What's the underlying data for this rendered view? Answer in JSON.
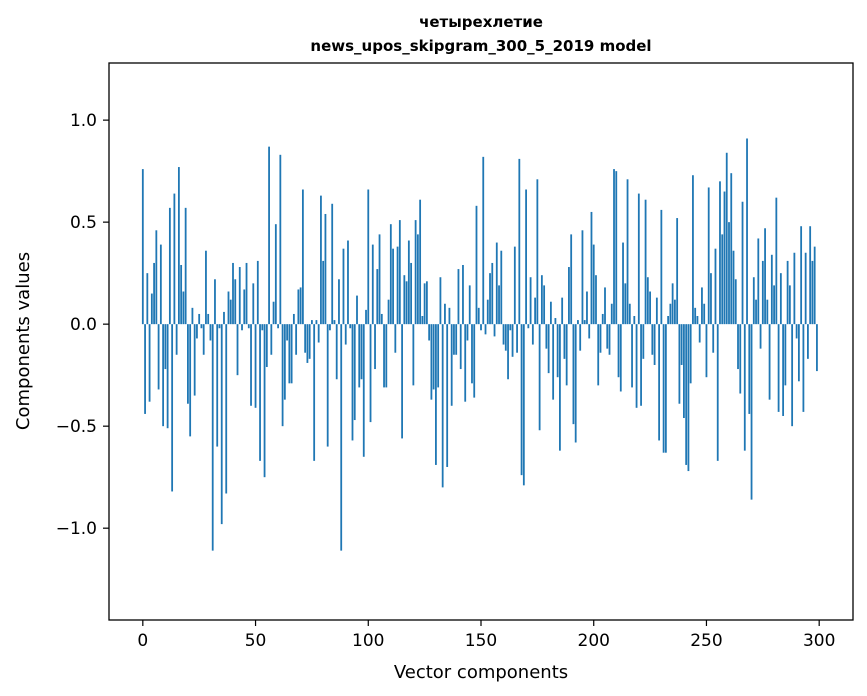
{
  "chart_data": {
    "type": "bar",
    "title_line1": "четырехлетие",
    "title_line2": "news_upos_skipgram_300_5_2019 model",
    "xlabel": "Vector components",
    "ylabel": "Components values",
    "xlim": [
      -15,
      315
    ],
    "ylim": [
      -1.45,
      1.28
    ],
    "xticks": [
      0,
      50,
      100,
      150,
      200,
      250,
      300
    ],
    "xtick_labels": [
      "0",
      "50",
      "100",
      "150",
      "200",
      "250",
      "300"
    ],
    "yticks": [
      -1.0,
      -0.5,
      0.0,
      0.5,
      1.0
    ],
    "ytick_labels": [
      "−1.0",
      "−0.5",
      "0.0",
      "0.5",
      "1.0"
    ],
    "bar_color": "#1f77b4",
    "values": [
      0.76,
      -0.44,
      0.25,
      -0.38,
      0.15,
      0.3,
      0.46,
      -0.32,
      0.39,
      -0.5,
      -0.22,
      -0.51,
      0.57,
      -0.82,
      0.64,
      -0.15,
      0.77,
      0.29,
      0.16,
      0.57,
      -0.39,
      -0.55,
      0.08,
      -0.35,
      -0.07,
      0.05,
      -0.02,
      -0.15,
      0.36,
      0.05,
      -0.08,
      -1.11,
      0.22,
      -0.6,
      -0.02,
      -0.98,
      0.06,
      -0.83,
      0.16,
      0.12,
      0.3,
      0.22,
      -0.25,
      0.28,
      -0.03,
      0.17,
      0.3,
      -0.02,
      -0.4,
      0.2,
      -0.41,
      0.31,
      -0.67,
      -0.03,
      -0.75,
      -0.21,
      0.87,
      -0.15,
      0.11,
      0.49,
      -0.02,
      0.83,
      -0.5,
      -0.37,
      -0.08,
      -0.29,
      -0.29,
      0.05,
      -0.15,
      0.17,
      0.18,
      0.66,
      -0.14,
      -0.19,
      -0.17,
      0.02,
      -0.67,
      0.02,
      -0.09,
      0.63,
      0.31,
      0.54,
      -0.6,
      -0.03,
      0.59,
      0.02,
      -0.27,
      0.22,
      -1.11,
      0.37,
      -0.1,
      0.41,
      -0.02,
      -0.57,
      -0.47,
      0.14,
      -0.31,
      -0.27,
      -0.65,
      0.07,
      0.66,
      -0.48,
      0.39,
      -0.22,
      0.27,
      0.44,
      0.05,
      -0.31,
      -0.31,
      0.12,
      0.49,
      0.37,
      -0.14,
      0.38,
      0.51,
      -0.56,
      0.24,
      0.21,
      0.41,
      0.3,
      -0.3,
      0.51,
      0.44,
      0.61,
      0.04,
      0.2,
      0.21,
      -0.08,
      -0.37,
      -0.32,
      -0.69,
      -0.31,
      0.23,
      -0.8,
      0.1,
      -0.7,
      0.08,
      -0.4,
      -0.15,
      -0.15,
      0.27,
      -0.22,
      0.29,
      -0.38,
      -0.08,
      0.19,
      -0.29,
      -0.36,
      0.58,
      0.08,
      -0.03,
      0.82,
      -0.05,
      0.12,
      0.25,
      0.3,
      -0.06,
      0.4,
      0.19,
      0.36,
      -0.1,
      -0.13,
      -0.27,
      -0.03,
      -0.16,
      0.38,
      -0.14,
      0.81,
      -0.74,
      -0.79,
      0.66,
      -0.02,
      0.23,
      -0.1,
      0.13,
      0.71,
      -0.52,
      0.24,
      0.19,
      -0.12,
      -0.24,
      0.11,
      -0.37,
      0.03,
      -0.26,
      -0.62,
      0.13,
      -0.17,
      -0.3,
      0.28,
      0.44,
      -0.49,
      -0.58,
      0.02,
      -0.13,
      0.46,
      0.02,
      0.16,
      -0.07,
      0.55,
      0.39,
      0.24,
      -0.3,
      -0.14,
      0.05,
      0.18,
      -0.12,
      -0.15,
      0.1,
      0.76,
      0.75,
      -0.26,
      -0.33,
      0.4,
      0.2,
      0.71,
      0.1,
      -0.31,
      0.04,
      -0.41,
      0.64,
      -0.4,
      -0.17,
      0.61,
      0.23,
      0.16,
      -0.15,
      -0.2,
      0.13,
      -0.57,
      0.56,
      -0.63,
      -0.63,
      0.04,
      0.1,
      0.2,
      0.12,
      0.52,
      -0.39,
      -0.2,
      -0.46,
      -0.69,
      -0.72,
      -0.29,
      0.73,
      0.08,
      0.04,
      -0.09,
      0.18,
      0.1,
      -0.26,
      0.67,
      0.25,
      -0.14,
      0.37,
      -0.67,
      0.7,
      0.44,
      0.65,
      0.84,
      0.5,
      0.74,
      0.36,
      0.22,
      -0.22,
      -0.34,
      0.6,
      -0.62,
      0.91,
      -0.44,
      -0.86,
      0.23,
      0.12,
      0.42,
      -0.12,
      0.31,
      0.47,
      0.12,
      -0.37,
      0.34,
      0.19,
      0.62,
      -0.43,
      0.25,
      -0.45,
      -0.3,
      0.31,
      0.19,
      -0.5,
      0.35,
      -0.07,
      -0.28,
      0.48,
      -0.43,
      0.35,
      -0.17,
      0.48,
      0.31,
      0.38,
      -0.23
    ]
  }
}
